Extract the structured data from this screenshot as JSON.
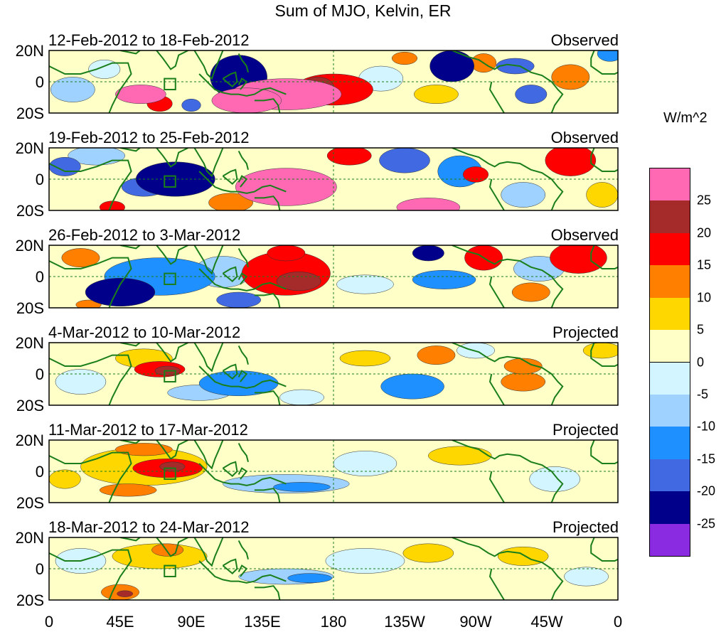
{
  "title": "Sum of MJO, Kelvin, ER",
  "units": "W/m^2",
  "latitude_labels": [
    "20N",
    "0",
    "20S"
  ],
  "longitude_labels": [
    "0",
    "45E",
    "90E",
    "135E",
    "180",
    "135W",
    "90W",
    "45W",
    "0"
  ],
  "legend": {
    "colors": [
      "#ff69b4",
      "#a52a2a",
      "#ff0000",
      "#ff7f00",
      "#ffd700",
      "#ffffc8",
      "#d2f5ff",
      "#a0d2ff",
      "#1e90ff",
      "#4169e1",
      "#00008b",
      "#8a2be2"
    ],
    "ticks": [
      "25",
      "20",
      "15",
      "10",
      "5",
      "0",
      "-5",
      "-10",
      "-15",
      "-20",
      "-25"
    ]
  },
  "panels": [
    {
      "dates": "12-Feb-2012 to 18-Feb-2012",
      "status": "Observed",
      "blobs": [
        {
          "lon": 120,
          "lat": 3,
          "rx": 18,
          "ry": 14,
          "v": -25
        },
        {
          "lon": 150,
          "lat": -8,
          "rx": 35,
          "ry": 10,
          "v": 25
        },
        {
          "lon": 125,
          "lat": -12,
          "rx": 22,
          "ry": 8,
          "v": 25
        },
        {
          "lon": 180,
          "lat": -5,
          "rx": 25,
          "ry": 10,
          "v": 15
        },
        {
          "lon": 170,
          "lat": -3,
          "rx": 10,
          "ry": 6,
          "v": 20
        },
        {
          "lon": 58,
          "lat": -8,
          "rx": 16,
          "ry": 6,
          "v": 25
        },
        {
          "lon": 70,
          "lat": -14,
          "rx": 8,
          "ry": 5,
          "v": 15
        },
        {
          "lon": 15,
          "lat": -5,
          "rx": 14,
          "ry": 8,
          "v": -10
        },
        {
          "lon": 35,
          "lat": 8,
          "rx": 10,
          "ry": 6,
          "v": -5
        },
        {
          "lon": 255,
          "lat": 10,
          "rx": 14,
          "ry": 10,
          "v": -25
        },
        {
          "lon": 295,
          "lat": 10,
          "rx": 12,
          "ry": 5,
          "v": -20
        },
        {
          "lon": 305,
          "lat": -8,
          "rx": 10,
          "ry": 6,
          "v": -20
        },
        {
          "lon": 275,
          "lat": 12,
          "rx": 8,
          "ry": 6,
          "v": 10
        },
        {
          "lon": 225,
          "lat": 15,
          "rx": 8,
          "ry": 4,
          "v": 10
        },
        {
          "lon": 330,
          "lat": 3,
          "rx": 12,
          "ry": 8,
          "v": 10
        },
        {
          "lon": 210,
          "lat": 2,
          "rx": 14,
          "ry": 8,
          "v": -5
        },
        {
          "lon": 245,
          "lat": -8,
          "rx": 14,
          "ry": 6,
          "v": 5
        },
        {
          "lon": 90,
          "lat": -15,
          "rx": 6,
          "ry": 4,
          "v": -20
        },
        {
          "lon": 355,
          "lat": 18,
          "rx": 8,
          "ry": 5,
          "v": -15
        }
      ]
    },
    {
      "dates": "19-Feb-2012 to 25-Feb-2012",
      "status": "Observed",
      "blobs": [
        {
          "lon": 80,
          "lat": 0,
          "rx": 25,
          "ry": 11,
          "v": -25
        },
        {
          "lon": 60,
          "lat": -5,
          "rx": 14,
          "ry": 6,
          "v": -20
        },
        {
          "lon": 150,
          "lat": -5,
          "rx": 32,
          "ry": 12,
          "v": 25
        },
        {
          "lon": 190,
          "lat": 15,
          "rx": 14,
          "ry": 6,
          "v": 15
        },
        {
          "lon": 225,
          "lat": 12,
          "rx": 16,
          "ry": 8,
          "v": -20
        },
        {
          "lon": 260,
          "lat": 5,
          "rx": 14,
          "ry": 10,
          "v": -15
        },
        {
          "lon": 240,
          "lat": -18,
          "rx": 20,
          "ry": 6,
          "v": 25
        },
        {
          "lon": 330,
          "lat": 12,
          "rx": 16,
          "ry": 10,
          "v": 15
        },
        {
          "lon": 270,
          "lat": 3,
          "rx": 8,
          "ry": 5,
          "v": 15
        },
        {
          "lon": 30,
          "lat": 15,
          "rx": 18,
          "ry": 6,
          "v": -10
        },
        {
          "lon": 10,
          "lat": 8,
          "rx": 10,
          "ry": 6,
          "v": -20
        },
        {
          "lon": 40,
          "lat": -18,
          "rx": 8,
          "ry": 4,
          "v": 15
        },
        {
          "lon": 300,
          "lat": -10,
          "rx": 14,
          "ry": 8,
          "v": -10
        },
        {
          "lon": 115,
          "lat": -15,
          "rx": 14,
          "ry": 6,
          "v": 10
        },
        {
          "lon": 350,
          "lat": -10,
          "rx": 10,
          "ry": 8,
          "v": 5
        }
      ]
    },
    {
      "dates": "26-Feb-2012 to 3-Mar-2012",
      "status": "Observed",
      "blobs": [
        {
          "lon": 45,
          "lat": -10,
          "rx": 22,
          "ry": 9,
          "v": -25
        },
        {
          "lon": 70,
          "lat": 0,
          "rx": 35,
          "ry": 12,
          "v": -15
        },
        {
          "lon": 110,
          "lat": 3,
          "rx": 18,
          "ry": 10,
          "v": -10
        },
        {
          "lon": 150,
          "lat": 2,
          "rx": 28,
          "ry": 14,
          "v": 15
        },
        {
          "lon": 158,
          "lat": -3,
          "rx": 14,
          "ry": 6,
          "v": 20
        },
        {
          "lon": 150,
          "lat": 15,
          "rx": 12,
          "ry": 5,
          "v": 15
        },
        {
          "lon": 240,
          "lat": 15,
          "rx": 10,
          "ry": 5,
          "v": -25
        },
        {
          "lon": 250,
          "lat": -2,
          "rx": 20,
          "ry": 6,
          "v": -15
        },
        {
          "lon": 275,
          "lat": 12,
          "rx": 12,
          "ry": 8,
          "v": 15
        },
        {
          "lon": 335,
          "lat": 12,
          "rx": 18,
          "ry": 10,
          "v": 15
        },
        {
          "lon": 305,
          "lat": -10,
          "rx": 12,
          "ry": 6,
          "v": 10
        },
        {
          "lon": 20,
          "lat": 12,
          "rx": 12,
          "ry": 6,
          "v": 10
        },
        {
          "lon": 200,
          "lat": -5,
          "rx": 18,
          "ry": 6,
          "v": -5
        },
        {
          "lon": 310,
          "lat": 5,
          "rx": 16,
          "ry": 8,
          "v": -10
        },
        {
          "lon": 120,
          "lat": -15,
          "rx": 14,
          "ry": 5,
          "v": -20
        },
        {
          "lon": 25,
          "lat": -18,
          "rx": 8,
          "ry": 3,
          "v": 10
        }
      ]
    },
    {
      "dates": "4-Mar-2012 to 10-Mar-2012",
      "status": "Projected",
      "blobs": [
        {
          "lon": 70,
          "lat": 3,
          "rx": 16,
          "ry": 5,
          "v": 15
        },
        {
          "lon": 75,
          "lat": 2,
          "rx": 8,
          "ry": 3,
          "v": 20
        },
        {
          "lon": 60,
          "lat": 10,
          "rx": 18,
          "ry": 6,
          "v": 5
        },
        {
          "lon": 120,
          "lat": -6,
          "rx": 25,
          "ry": 8,
          "v": -15
        },
        {
          "lon": 95,
          "lat": -12,
          "rx": 20,
          "ry": 5,
          "v": -10
        },
        {
          "lon": 200,
          "lat": 10,
          "rx": 16,
          "ry": 5,
          "v": 5
        },
        {
          "lon": 245,
          "lat": 12,
          "rx": 12,
          "ry": 6,
          "v": 10
        },
        {
          "lon": 230,
          "lat": -8,
          "rx": 20,
          "ry": 8,
          "v": -15
        },
        {
          "lon": 300,
          "lat": -5,
          "rx": 14,
          "ry": 6,
          "v": 10
        },
        {
          "lon": 300,
          "lat": 5,
          "rx": 12,
          "ry": 5,
          "v": 10
        },
        {
          "lon": 20,
          "lat": -5,
          "rx": 16,
          "ry": 8,
          "v": -5
        },
        {
          "lon": 270,
          "lat": 15,
          "rx": 12,
          "ry": 5,
          "v": -5
        },
        {
          "lon": 350,
          "lat": 15,
          "rx": 12,
          "ry": 5,
          "v": 5
        },
        {
          "lon": 160,
          "lat": -15,
          "rx": 14,
          "ry": 5,
          "v": -5
        }
      ]
    },
    {
      "dates": "11-Mar-2012 to 17-Mar-2012",
      "status": "Projected",
      "blobs": [
        {
          "lon": 75,
          "lat": 2,
          "rx": 22,
          "ry": 6,
          "v": 15
        },
        {
          "lon": 78,
          "lat": 3,
          "rx": 8,
          "ry": 3,
          "v": 20
        },
        {
          "lon": 60,
          "lat": 3,
          "rx": 40,
          "ry": 12,
          "v": 5
        },
        {
          "lon": 50,
          "lat": -12,
          "rx": 18,
          "ry": 4,
          "v": 10
        },
        {
          "lon": 60,
          "lat": 14,
          "rx": 18,
          "ry": 4,
          "v": 10
        },
        {
          "lon": 150,
          "lat": -8,
          "rx": 40,
          "ry": 6,
          "v": -10
        },
        {
          "lon": 160,
          "lat": -10,
          "rx": 18,
          "ry": 3,
          "v": -15
        },
        {
          "lon": 200,
          "lat": 5,
          "rx": 20,
          "ry": 8,
          "v": -5
        },
        {
          "lon": 260,
          "lat": 10,
          "rx": 20,
          "ry": 6,
          "v": 5
        },
        {
          "lon": 320,
          "lat": -5,
          "rx": 16,
          "ry": 8,
          "v": -5
        },
        {
          "lon": 10,
          "lat": -5,
          "rx": 10,
          "ry": 6,
          "v": 5
        }
      ]
    },
    {
      "dates": "18-Mar-2012 to 24-Mar-2012",
      "status": "Projected",
      "blobs": [
        {
          "lon": 70,
          "lat": 8,
          "rx": 30,
          "ry": 8,
          "v": 5
        },
        {
          "lon": 75,
          "lat": 12,
          "rx": 10,
          "ry": 4,
          "v": 10
        },
        {
          "lon": 45,
          "lat": -15,
          "rx": 12,
          "ry": 5,
          "v": 10
        },
        {
          "lon": 48,
          "lat": -16,
          "rx": 5,
          "ry": 2,
          "v": 20
        },
        {
          "lon": 150,
          "lat": -5,
          "rx": 30,
          "ry": 5,
          "v": -10
        },
        {
          "lon": 165,
          "lat": -6,
          "rx": 14,
          "ry": 3,
          "v": -15
        },
        {
          "lon": 200,
          "lat": 5,
          "rx": 25,
          "ry": 8,
          "v": -5
        },
        {
          "lon": 240,
          "lat": 10,
          "rx": 16,
          "ry": 6,
          "v": 5
        },
        {
          "lon": 300,
          "lat": 8,
          "rx": 16,
          "ry": 6,
          "v": 5
        },
        {
          "lon": 20,
          "lat": 5,
          "rx": 16,
          "ry": 8,
          "v": -5
        },
        {
          "lon": 340,
          "lat": -5,
          "rx": 14,
          "ry": 6,
          "v": -5
        }
      ]
    }
  ]
}
